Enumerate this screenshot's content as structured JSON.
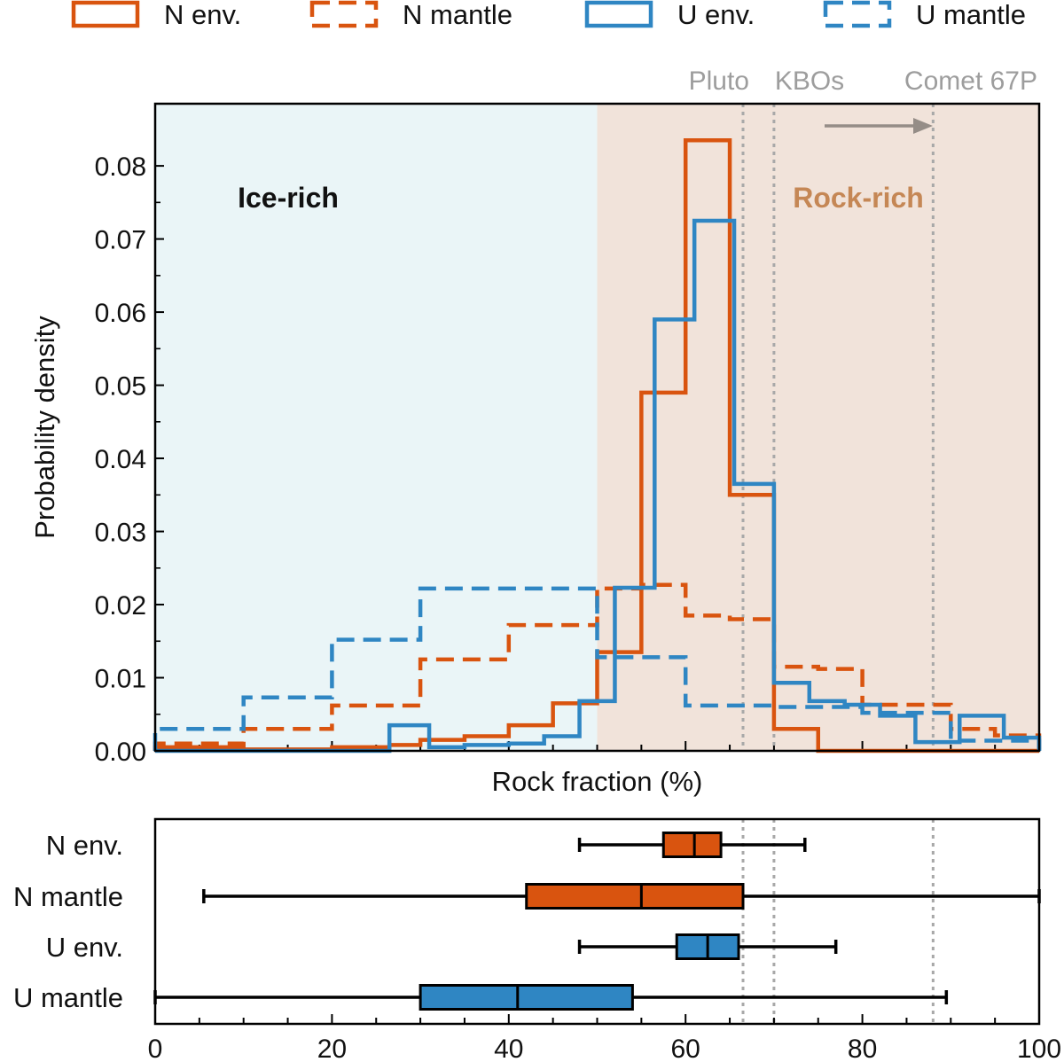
{
  "colors": {
    "neptune": "#d9540f",
    "uranus": "#2f86c3",
    "ice_region": "#eaf5f7",
    "rock_region": "#f1e3da",
    "rock_label": "#c58755",
    "marker": "#a8a8a8",
    "marker_text": "#9d9d9d",
    "arrow": "#958d87"
  },
  "legend": [
    {
      "label": "N env.",
      "series": "N_env",
      "style": "solid"
    },
    {
      "label": "N mantle",
      "series": "N_mantle",
      "style": "dashed"
    },
    {
      "label": "U env.",
      "series": "U_env",
      "style": "solid"
    },
    {
      "label": "U mantle",
      "series": "U_mantle",
      "style": "dashed"
    }
  ],
  "chart_data": [
    {
      "type": "histogram",
      "xlabel": "Rock fraction (%)",
      "ylabel": "Probability density",
      "xlim": [
        0,
        100
      ],
      "ylim": [
        0,
        0.0885
      ],
      "yticks": [
        "0.00",
        "0.01",
        "0.02",
        "0.03",
        "0.04",
        "0.05",
        "0.06",
        "0.07",
        "0.08"
      ],
      "regions": [
        {
          "label": "Ice-rich",
          "x0": 0,
          "x1": 50
        },
        {
          "label": "Rock-rich",
          "x0": 50,
          "x1": 100
        }
      ],
      "reference_lines": [
        {
          "label": "Pluto",
          "x": 66.5
        },
        {
          "label": "KBOs",
          "x": 70
        },
        {
          "label": "Comet 67P",
          "x": 88
        }
      ],
      "series": [
        {
          "key": "N_env",
          "style": "solid",
          "edges": [
            0,
            10,
            20,
            26.5,
            30,
            35,
            40,
            45,
            50,
            55,
            60,
            65,
            67,
            70,
            75,
            80,
            85,
            90,
            95,
            100
          ],
          "values": [
            0.0005,
            0.0002,
            0.0005,
            0.0008,
            0.0015,
            0.002,
            0.0035,
            0.0065,
            0.0135,
            0.049,
            0.0835,
            0.035,
            0.035,
            0.003,
            0,
            0,
            0,
            0,
            0
          ]
        },
        {
          "key": "N_mantle",
          "style": "dashed",
          "edges": [
            0,
            10,
            20,
            30,
            40,
            50,
            55,
            60,
            65,
            70,
            75,
            80,
            85,
            90,
            95,
            100
          ],
          "values": [
            0.001,
            0.003,
            0.0062,
            0.0125,
            0.0172,
            0.0222,
            0.0227,
            0.0185,
            0.018,
            0.0115,
            0.0112,
            0.0063,
            0.0063,
            0.003,
            0.0021
          ]
        },
        {
          "key": "U_env",
          "style": "solid",
          "edges": [
            0,
            26.5,
            31,
            35,
            40,
            44,
            48,
            52,
            56.5,
            61,
            65.5,
            70,
            74,
            78,
            82,
            86,
            91,
            96,
            100
          ],
          "values": [
            0,
            0.0035,
            0.0005,
            0.0008,
            0.001,
            0.002,
            0.0068,
            0.0223,
            0.059,
            0.0725,
            0.0365,
            0.0093,
            0.0068,
            0.0063,
            0.0048,
            0.0012,
            0.0048,
            0.0018
          ]
        },
        {
          "key": "U_mantle",
          "style": "dashed",
          "edges": [
            0,
            10,
            20,
            30,
            40,
            50,
            60,
            70,
            80,
            90,
            100
          ],
          "values": [
            0.003,
            0.0073,
            0.0152,
            0.0222,
            0.0222,
            0.0128,
            0.0062,
            0.006,
            0.0052,
            0.0014
          ]
        }
      ]
    },
    {
      "type": "boxplot",
      "xlim": [
        0,
        100
      ],
      "xticks": [
        "0",
        "20",
        "40",
        "60",
        "80",
        "100"
      ],
      "boxes": [
        {
          "label": "N env.",
          "series": "N_env",
          "whisker_low": 48,
          "q1": 57.5,
          "median": 61,
          "q3": 64,
          "whisker_high": 73.5
        },
        {
          "label": "N mantle",
          "series": "N_mantle",
          "whisker_low": 5.5,
          "q1": 42,
          "median": 55,
          "q3": 66.5,
          "whisker_high": 100
        },
        {
          "label": "U env.",
          "series": "U_env",
          "whisker_low": 48,
          "q1": 59,
          "median": 62.5,
          "q3": 66,
          "whisker_high": 77
        },
        {
          "label": "U mantle",
          "series": "U_mantle",
          "whisker_low": 0,
          "q1": 30,
          "median": 41,
          "q3": 54,
          "whisker_high": 89.5
        }
      ]
    }
  ]
}
